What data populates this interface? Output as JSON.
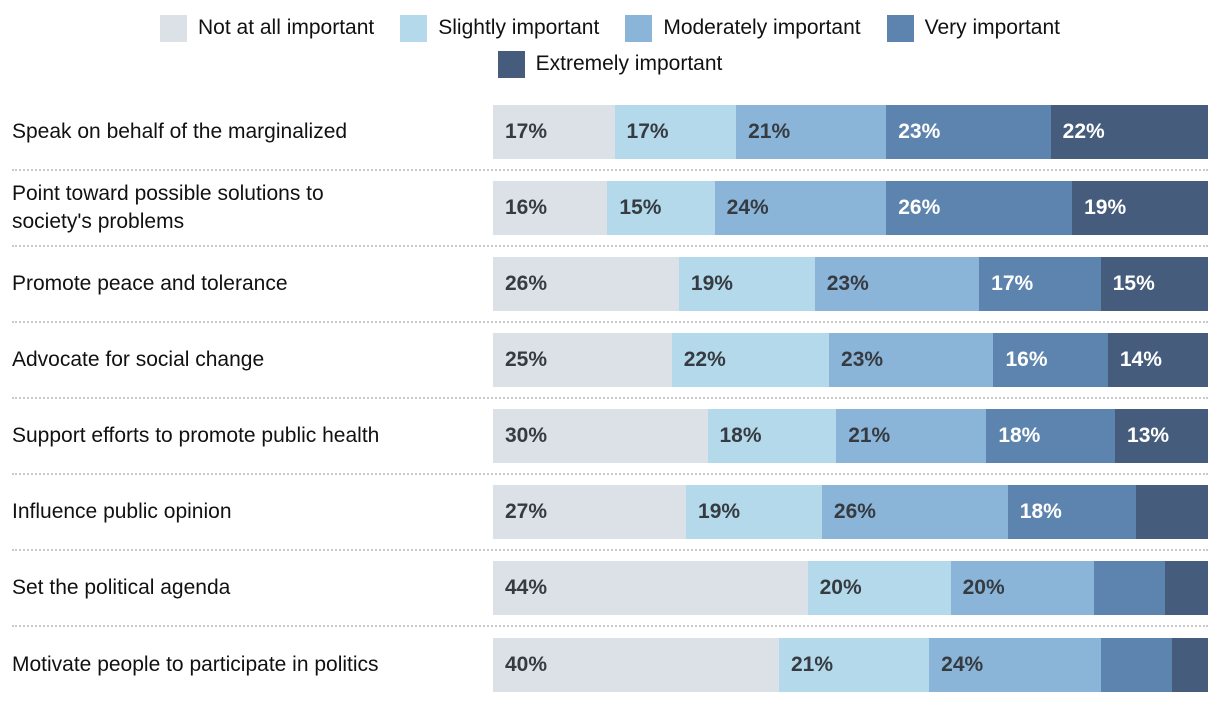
{
  "legend": {
    "items": [
      {
        "label": "Not at all important",
        "color": "#dce1e8"
      },
      {
        "label": "Slightly important",
        "color": "#b3d9eb"
      },
      {
        "label": "Moderately important",
        "color": "#8ab5d9"
      },
      {
        "label": "Very important",
        "color": "#5d84ae"
      },
      {
        "label": "Extremely important",
        "color": "#465c7c"
      }
    ]
  },
  "chart_data": {
    "type": "bar",
    "variant": "horizontal-stacked-100",
    "unit": "%",
    "title": "",
    "xlabel": "",
    "ylabel": "",
    "xlim": [
      0,
      100
    ],
    "grid": false,
    "legend_position": "top-center",
    "categories": [
      "Speak on behalf of the marginalized",
      "Point toward possible solutions to\nsociety's problems",
      "Promote peace and tolerance",
      "Advocate for social change",
      "Support efforts to promote public health",
      "Influence public opinion",
      "Set the political agenda",
      "Motivate people to participate in politics"
    ],
    "series": [
      {
        "name": "Not at all important",
        "color": "#dce1e8",
        "label_color": "#363b42",
        "values": [
          17,
          16,
          26,
          25,
          30,
          27,
          44,
          40
        ],
        "labels": [
          "17%",
          "16%",
          "26%",
          "25%",
          "30%",
          "27%",
          "44%",
          "40%"
        ]
      },
      {
        "name": "Slightly important",
        "color": "#b3d9eb",
        "label_color": "#363b42",
        "values": [
          17,
          15,
          19,
          22,
          18,
          19,
          20,
          21
        ],
        "labels": [
          "17%",
          "15%",
          "19%",
          "22%",
          "18%",
          "19%",
          "20%",
          "21%"
        ]
      },
      {
        "name": "Moderately important",
        "color": "#8ab5d9",
        "label_color": "#363b42",
        "values": [
          21,
          24,
          23,
          23,
          21,
          26,
          20,
          24
        ],
        "labels": [
          "21%",
          "24%",
          "23%",
          "23%",
          "21%",
          "26%",
          "20%",
          "24%"
        ]
      },
      {
        "name": "Very important",
        "color": "#5d84ae",
        "label_color": "#ffffff",
        "values": [
          23,
          26,
          17,
          16,
          18,
          18,
          10,
          10
        ],
        "labels": [
          "23%",
          "26%",
          "17%",
          "16%",
          "18%",
          "18%",
          "",
          ""
        ]
      },
      {
        "name": "Extremely important",
        "color": "#465c7c",
        "label_color": "#ffffff",
        "values": [
          22,
          19,
          15,
          14,
          13,
          10,
          6,
          5
        ],
        "labels": [
          "22%",
          "19%",
          "15%",
          "14%",
          "13%",
          "",
          "",
          ""
        ]
      }
    ]
  }
}
